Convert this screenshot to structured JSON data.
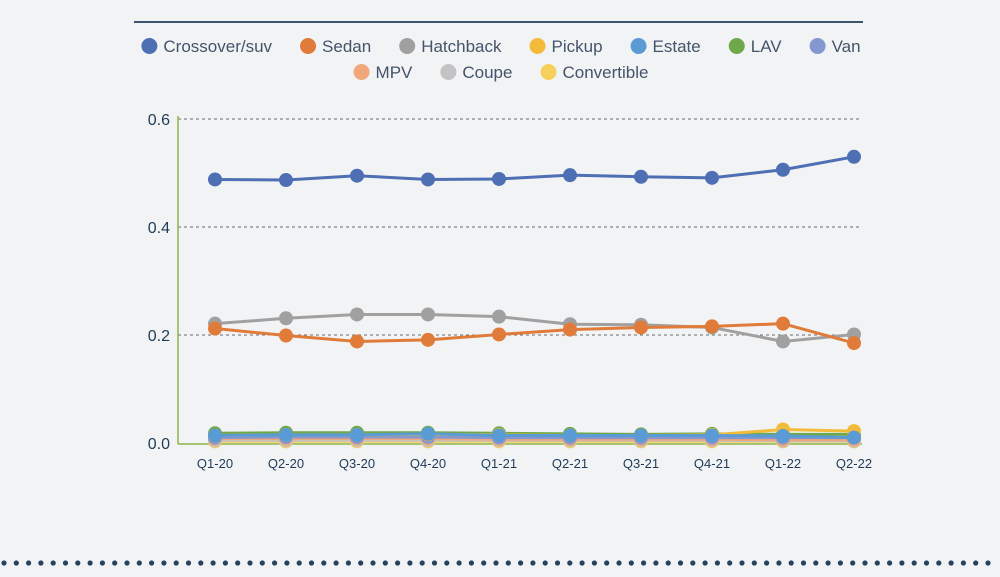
{
  "chart_data": {
    "type": "line",
    "categories": [
      "Q1-20",
      "Q2-20",
      "Q3-20",
      "Q4-20",
      "Q1-21",
      "Q2-21",
      "Q3-21",
      "Q4-21",
      "Q1-22",
      "Q2-22"
    ],
    "ylim": [
      0,
      0.6
    ],
    "yticks": [
      "0.0",
      "0.2",
      "0.4",
      "0.6"
    ],
    "grid": true,
    "legend_position": "top",
    "series": [
      {
        "name": "Crossover/suv",
        "color": "#4e6fb3",
        "values": [
          0.488,
          0.487,
          0.495,
          0.488,
          0.489,
          0.496,
          0.493,
          0.491,
          0.506,
          0.53
        ]
      },
      {
        "name": "Sedan",
        "color": "#e07b39",
        "values": [
          0.212,
          0.199,
          0.188,
          0.191,
          0.201,
          0.21,
          0.214,
          0.216,
          0.221,
          0.185
        ]
      },
      {
        "name": "Hatchback",
        "color": "#a0a0a0",
        "values": [
          0.221,
          0.231,
          0.238,
          0.238,
          0.234,
          0.22,
          0.219,
          0.214,
          0.188,
          0.201
        ]
      },
      {
        "name": "Pickup",
        "color": "#f2bc3a",
        "values": [
          0.014,
          0.015,
          0.015,
          0.016,
          0.015,
          0.014,
          0.014,
          0.015,
          0.025,
          0.022
        ]
      },
      {
        "name": "Estate",
        "color": "#5b9bd5",
        "values": [
          0.014,
          0.015,
          0.015,
          0.017,
          0.014,
          0.014,
          0.014,
          0.014,
          0.013,
          0.01
        ]
      },
      {
        "name": "LAV",
        "color": "#6fa84a",
        "values": [
          0.018,
          0.019,
          0.019,
          0.019,
          0.018,
          0.017,
          0.016,
          0.017,
          0.016,
          0.016
        ]
      },
      {
        "name": "Van",
        "color": "#8497cf",
        "values": [
          0.01,
          0.011,
          0.011,
          0.011,
          0.01,
          0.01,
          0.01,
          0.01,
          0.01,
          0.01
        ]
      },
      {
        "name": "MPV",
        "color": "#f0a77a",
        "values": [
          0.008,
          0.008,
          0.008,
          0.008,
          0.007,
          0.007,
          0.007,
          0.007,
          0.006,
          0.006
        ]
      },
      {
        "name": "Coupe",
        "color": "#c3c3c3",
        "values": [
          0.005,
          0.005,
          0.005,
          0.005,
          0.005,
          0.005,
          0.005,
          0.005,
          0.004,
          0.004
        ]
      },
      {
        "name": "Convertible",
        "color": "#f5d05c",
        "values": [
          0.003,
          0.003,
          0.003,
          0.003,
          0.003,
          0.003,
          0.003,
          0.003,
          0.003,
          0.003
        ]
      }
    ]
  }
}
